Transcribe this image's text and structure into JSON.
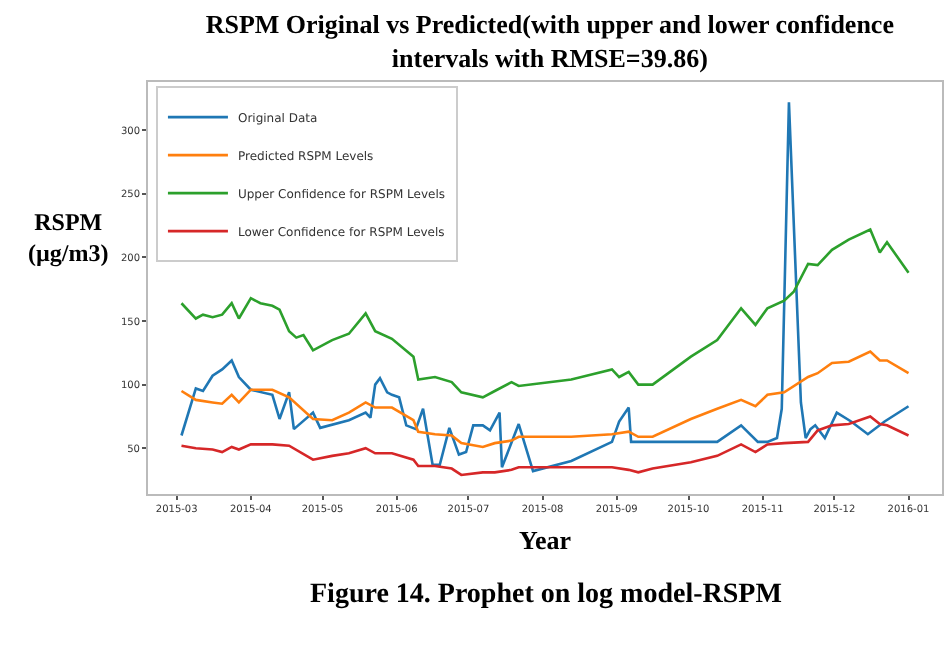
{
  "chart_data": {
    "type": "line",
    "title": "RSPM Original vs Predicted(with upper and lower confidence intervals with RMSE=39.86)",
    "xlabel": "Year",
    "ylabel": "RSPM\n(µg/m3)",
    "annotations": [
      "Figure 14. Prophet on log model-RSPM"
    ],
    "x": [
      "2015-03-03",
      "2015-03-09",
      "2015-03-16",
      "2015-03-20",
      "2015-03-24",
      "2015-03-27",
      "2015-04-01",
      "2015-04-10",
      "2015-04-17",
      "2015-04-27",
      "2015-05-05",
      "2015-05-12",
      "2015-05-19",
      "2015-05-23",
      "2015-05-30",
      "2015-06-08",
      "2015-06-10",
      "2015-06-17",
      "2015-06-24",
      "2015-06-28",
      "2015-07-07",
      "2015-07-12",
      "2015-07-19",
      "2015-07-22",
      "2015-08-13",
      "2015-08-30",
      "2015-09-06",
      "2015-09-10",
      "2015-09-16",
      "2015-10-02",
      "2015-10-13",
      "2015-10-23",
      "2015-10-29",
      "2015-11-03",
      "2015-11-10",
      "2015-11-20",
      "2015-11-24",
      "2015-11-30",
      "2015-12-07",
      "2015-12-16",
      "2015-12-20",
      "2015-12-23",
      "2016-01-01"
    ],
    "series": [
      {
        "name": "Original Data",
        "color": "#1f77b4",
        "x": [
          "2015-03-03",
          "2015-03-09",
          "2015-03-12",
          "2015-03-16",
          "2015-03-20",
          "2015-03-24",
          "2015-03-27",
          "2015-04-01",
          "2015-04-10",
          "2015-04-13",
          "2015-04-17",
          "2015-04-19",
          "2015-04-27",
          "2015-04-30",
          "2015-05-12",
          "2015-05-19",
          "2015-05-21",
          "2015-05-23",
          "2015-05-25",
          "2015-05-28",
          "2015-05-30",
          "2015-06-02",
          "2015-06-05",
          "2015-06-09",
          "2015-06-12",
          "2015-06-16",
          "2015-06-19",
          "2015-06-23",
          "2015-06-27",
          "2015-06-30",
          "2015-07-03",
          "2015-07-07",
          "2015-07-10",
          "2015-07-14",
          "2015-07-15",
          "2015-07-22",
          "2015-07-28",
          "2015-08-13",
          "2015-08-30",
          "2015-09-02",
          "2015-09-06",
          "2015-09-07",
          "2015-09-13",
          "2015-10-13",
          "2015-10-23",
          "2015-10-30",
          "2015-11-03",
          "2015-11-07",
          "2015-11-09",
          "2015-11-12",
          "2015-11-17",
          "2015-11-19",
          "2015-11-21",
          "2015-11-23",
          "2015-11-27",
          "2015-12-02",
          "2015-12-08",
          "2015-12-15",
          "2015-12-22",
          "2016-01-01"
        ],
        "values": [
          60,
          97,
          95,
          107,
          112,
          119,
          106,
          96,
          92,
          73,
          94,
          65,
          78,
          66,
          72,
          78,
          74,
          100,
          105,
          94,
          92,
          90,
          68,
          65,
          81,
          37,
          37,
          66,
          45,
          47,
          68,
          68,
          64,
          78,
          35,
          69,
          32,
          40,
          55,
          71,
          82,
          55,
          55,
          55,
          68,
          55,
          55,
          58,
          81,
          322,
          86,
          58,
          65,
          68,
          58,
          78,
          71,
          61,
          71,
          83
        ]
      },
      {
        "name": "Predicted RSPM Levels",
        "color": "#ff7f0e",
        "values": [
          95,
          88,
          86,
          85,
          92,
          86,
          96,
          96,
          90,
          73,
          72,
          78,
          86,
          82,
          82,
          72,
          63,
          61,
          60,
          54,
          51,
          54,
          56,
          59,
          59,
          61,
          63,
          59,
          59,
          73,
          81,
          88,
          83,
          92,
          94,
          106,
          109,
          117,
          118,
          126,
          119,
          119,
          109
        ]
      },
      {
        "name": "Upper Confidence for RSPM Levels",
        "color": "#2ca02c",
        "x": [
          "2015-03-03",
          "2015-03-09",
          "2015-03-12",
          "2015-03-16",
          "2015-03-20",
          "2015-03-24",
          "2015-03-27",
          "2015-04-01",
          "2015-04-05",
          "2015-04-10",
          "2015-04-13",
          "2015-04-17",
          "2015-04-20",
          "2015-04-23",
          "2015-04-27",
          "2015-05-05",
          "2015-05-12",
          "2015-05-19",
          "2015-05-23",
          "2015-05-30",
          "2015-06-08",
          "2015-06-10",
          "2015-06-17",
          "2015-06-24",
          "2015-06-28",
          "2015-07-07",
          "2015-07-12",
          "2015-07-19",
          "2015-07-22",
          "2015-08-13",
          "2015-08-30",
          "2015-09-02",
          "2015-09-06",
          "2015-09-10",
          "2015-09-16",
          "2015-10-02",
          "2015-10-13",
          "2015-10-23",
          "2015-10-29",
          "2015-11-03",
          "2015-11-10",
          "2015-11-14",
          "2015-11-20",
          "2015-11-24",
          "2015-11-30",
          "2015-12-07",
          "2015-12-16",
          "2015-12-20",
          "2015-12-23",
          "2016-01-01"
        ],
        "values": [
          164,
          152,
          155,
          153,
          155,
          164,
          152,
          168,
          164,
          162,
          159,
          142,
          137,
          139,
          127,
          135,
          140,
          156,
          142,
          136,
          122,
          104,
          106,
          102,
          94,
          90,
          95,
          102,
          99,
          104,
          112,
          106,
          110,
          100,
          100,
          122,
          135,
          160,
          147,
          160,
          166,
          173,
          195,
          194,
          206,
          214,
          222,
          204,
          212,
          188
        ]
      },
      {
        "name": "Lower Confidence for RSPM Levels",
        "color": "#d62728",
        "values": [
          52,
          50,
          49,
          47,
          51,
          49,
          53,
          53,
          52,
          41,
          44,
          46,
          50,
          46,
          46,
          41,
          36,
          36,
          34,
          29,
          31,
          31,
          33,
          35,
          35,
          35,
          33,
          31,
          34,
          39,
          44,
          53,
          47,
          53,
          54,
          55,
          64,
          68,
          69,
          75,
          69,
          68,
          60
        ]
      }
    ],
    "xlim": [
      "2015-02-17",
      "2016-01-15"
    ],
    "xticks": [
      "2015-03",
      "2015-04",
      "2015-05",
      "2015-06",
      "2015-07",
      "2015-08",
      "2015-09",
      "2015-10",
      "2015-11",
      "2015-12",
      "2016-01"
    ],
    "ylim": [
      14,
      338
    ],
    "yticks": [
      50,
      100,
      150,
      200,
      250,
      300
    ],
    "grid": false,
    "legend": "top left",
    "marker": "none",
    "line_style": "solid"
  }
}
